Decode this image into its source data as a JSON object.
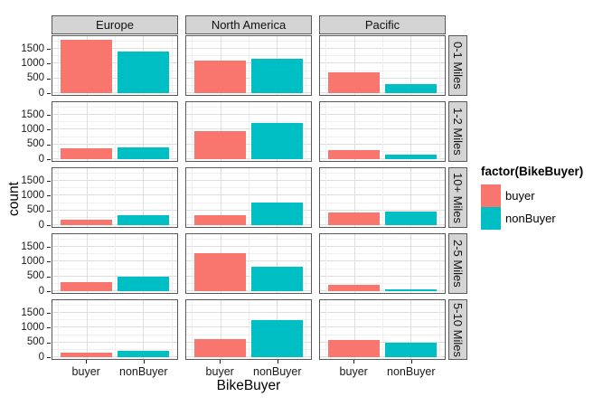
{
  "chart_data": {
    "type": "bar",
    "xlabel": "BikeBuyer",
    "ylabel": "count",
    "legend_title": "factor(BikeBuyer)",
    "legend_entries": [
      "buyer",
      "nonBuyer"
    ],
    "categories": [
      "buyer",
      "nonBuyer"
    ],
    "series_colors": [
      "#F8766D",
      "#00BFC4"
    ],
    "facet_columns": [
      "Europe",
      "North America",
      "Pacific"
    ],
    "facet_rows": [
      "0-1 Miles",
      "1-2 Miles",
      "10+ Miles",
      "2-5 Miles",
      "5-10 Miles"
    ],
    "yticks": [
      0,
      500,
      1000,
      1500
    ],
    "ylim": [
      0,
      1900
    ],
    "grid": true,
    "legend_position": "right",
    "values": [
      [
        [
          1820,
          1410
        ],
        [
          1090,
          1150
        ],
        [
          700,
          300
        ]
      ],
      [
        [
          360,
          400
        ],
        [
          950,
          1230
        ],
        [
          300,
          160
        ]
      ],
      [
        [
          170,
          350
        ],
        [
          350,
          760
        ],
        [
          420,
          450
        ]
      ],
      [
        [
          320,
          490
        ],
        [
          1280,
          840
        ],
        [
          210,
          50
        ]
      ],
      [
        [
          160,
          200
        ],
        [
          620,
          1260
        ],
        [
          580,
          500
        ]
      ]
    ]
  }
}
